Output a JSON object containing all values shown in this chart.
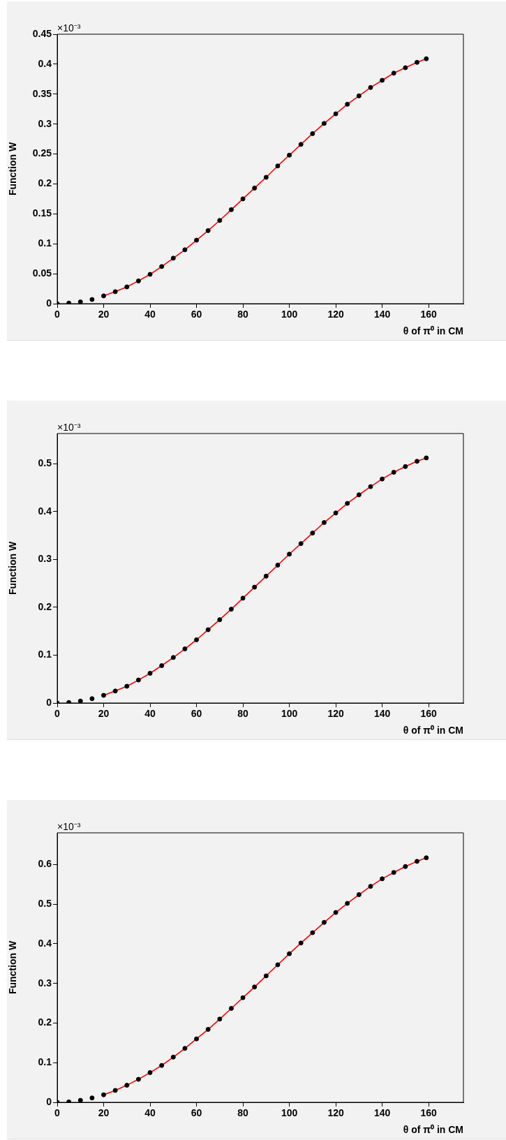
{
  "chart_data": [
    {
      "type": "scatter",
      "xlabel": "θ of π⁰ in CM",
      "ylabel": "Function W",
      "annotations": [
        "×10⁻³"
      ],
      "xlim": [
        0,
        175
      ],
      "xticks": [
        0,
        20,
        40,
        60,
        80,
        100,
        120,
        140,
        160
      ],
      "ylim": [
        0,
        0.45
      ],
      "yticks": [
        0,
        0.05,
        0.1,
        0.15,
        0.2,
        0.25,
        0.3,
        0.35,
        0.4,
        0.45
      ],
      "series": [
        {
          "marker": "circle",
          "color": "#000000",
          "x": [
            0,
            5,
            10,
            15,
            20,
            25,
            30,
            35,
            40,
            45,
            50,
            55,
            60,
            65,
            70,
            75,
            80,
            85,
            90,
            95,
            100,
            105,
            110,
            115,
            120,
            125,
            130,
            135,
            140,
            145,
            150,
            155,
            159
          ],
          "values": [
            0,
            0.001,
            0.003,
            0.007,
            0.013,
            0.02,
            0.028,
            0.038,
            0.049,
            0.062,
            0.076,
            0.09,
            0.106,
            0.122,
            0.139,
            0.157,
            0.175,
            0.193,
            0.211,
            0.23,
            0.248,
            0.266,
            0.284,
            0.301,
            0.317,
            0.333,
            0.347,
            0.361,
            0.373,
            0.385,
            0.394,
            0.403,
            0.409
          ]
        },
        {
          "type": "line",
          "color": "#ff0000",
          "x": [
            20,
            25,
            30,
            35,
            40,
            45,
            50,
            55,
            60,
            65,
            70,
            75,
            80,
            85,
            90,
            95,
            100,
            105,
            110,
            115,
            120,
            125,
            130,
            135,
            140,
            145,
            150,
            155,
            159
          ],
          "values": [
            0.013,
            0.02,
            0.028,
            0.038,
            0.049,
            0.062,
            0.076,
            0.09,
            0.106,
            0.122,
            0.139,
            0.157,
            0.175,
            0.193,
            0.211,
            0.23,
            0.248,
            0.266,
            0.284,
            0.301,
            0.317,
            0.333,
            0.347,
            0.361,
            0.373,
            0.385,
            0.394,
            0.403,
            0.409
          ]
        }
      ]
    },
    {
      "type": "scatter",
      "xlabel": "θ of π⁰ in CM",
      "ylabel": "Function W",
      "annotations": [
        "×10⁻³"
      ],
      "xlim": [
        0,
        175
      ],
      "xticks": [
        0,
        20,
        40,
        60,
        80,
        100,
        120,
        140,
        160
      ],
      "ylim": [
        0,
        0.563
      ],
      "yticks": [
        0,
        0.1,
        0.2,
        0.3,
        0.4,
        0.5
      ],
      "series": [
        {
          "marker": "circle",
          "color": "#000000",
          "x": [
            0,
            5,
            10,
            15,
            20,
            25,
            30,
            35,
            40,
            45,
            50,
            55,
            60,
            65,
            70,
            75,
            80,
            85,
            90,
            95,
            100,
            105,
            110,
            115,
            120,
            125,
            130,
            135,
            140,
            145,
            150,
            155,
            159
          ],
          "values": [
            0,
            0.001,
            0.004,
            0.009,
            0.016,
            0.025,
            0.035,
            0.048,
            0.062,
            0.078,
            0.095,
            0.113,
            0.132,
            0.153,
            0.174,
            0.196,
            0.219,
            0.242,
            0.265,
            0.288,
            0.311,
            0.333,
            0.355,
            0.377,
            0.397,
            0.417,
            0.435,
            0.452,
            0.468,
            0.482,
            0.494,
            0.505,
            0.512
          ]
        },
        {
          "type": "line",
          "color": "#ff0000",
          "x": [
            20,
            25,
            30,
            35,
            40,
            45,
            50,
            55,
            60,
            65,
            70,
            75,
            80,
            85,
            90,
            95,
            100,
            105,
            110,
            115,
            120,
            125,
            130,
            135,
            140,
            145,
            150,
            155,
            159
          ],
          "values": [
            0.016,
            0.025,
            0.035,
            0.048,
            0.062,
            0.078,
            0.095,
            0.113,
            0.132,
            0.153,
            0.174,
            0.196,
            0.219,
            0.242,
            0.265,
            0.288,
            0.311,
            0.333,
            0.355,
            0.377,
            0.397,
            0.417,
            0.435,
            0.452,
            0.468,
            0.482,
            0.494,
            0.505,
            0.512
          ]
        }
      ]
    },
    {
      "type": "scatter",
      "xlabel": "θ of π⁰ in CM",
      "ylabel": "Function W",
      "annotations": [
        "×10⁻³"
      ],
      "xlim": [
        0,
        175
      ],
      "xticks": [
        0,
        20,
        40,
        60,
        80,
        100,
        120,
        140,
        160
      ],
      "ylim": [
        0,
        0.68
      ],
      "yticks": [
        0,
        0.1,
        0.2,
        0.3,
        0.4,
        0.5,
        0.6
      ],
      "series": [
        {
          "marker": "circle",
          "color": "#000000",
          "x": [
            0,
            5,
            10,
            15,
            20,
            25,
            30,
            35,
            40,
            45,
            50,
            55,
            60,
            65,
            70,
            75,
            80,
            85,
            90,
            95,
            100,
            105,
            110,
            115,
            120,
            125,
            130,
            135,
            140,
            145,
            150,
            155,
            159
          ],
          "values": [
            0,
            0.001,
            0.005,
            0.011,
            0.019,
            0.03,
            0.043,
            0.058,
            0.075,
            0.093,
            0.114,
            0.136,
            0.16,
            0.184,
            0.21,
            0.237,
            0.264,
            0.291,
            0.319,
            0.347,
            0.375,
            0.402,
            0.428,
            0.454,
            0.479,
            0.502,
            0.524,
            0.545,
            0.564,
            0.58,
            0.595,
            0.608,
            0.617
          ]
        },
        {
          "type": "line",
          "color": "#ff0000",
          "x": [
            20,
            25,
            30,
            35,
            40,
            45,
            50,
            55,
            60,
            65,
            70,
            75,
            80,
            85,
            90,
            95,
            100,
            105,
            110,
            115,
            120,
            125,
            130,
            135,
            140,
            145,
            150,
            155,
            159
          ],
          "values": [
            0.019,
            0.03,
            0.043,
            0.058,
            0.075,
            0.093,
            0.114,
            0.136,
            0.16,
            0.184,
            0.21,
            0.237,
            0.264,
            0.291,
            0.319,
            0.347,
            0.375,
            0.402,
            0.428,
            0.454,
            0.479,
            0.502,
            0.524,
            0.545,
            0.564,
            0.58,
            0.595,
            0.608,
            0.617
          ]
        }
      ]
    }
  ]
}
